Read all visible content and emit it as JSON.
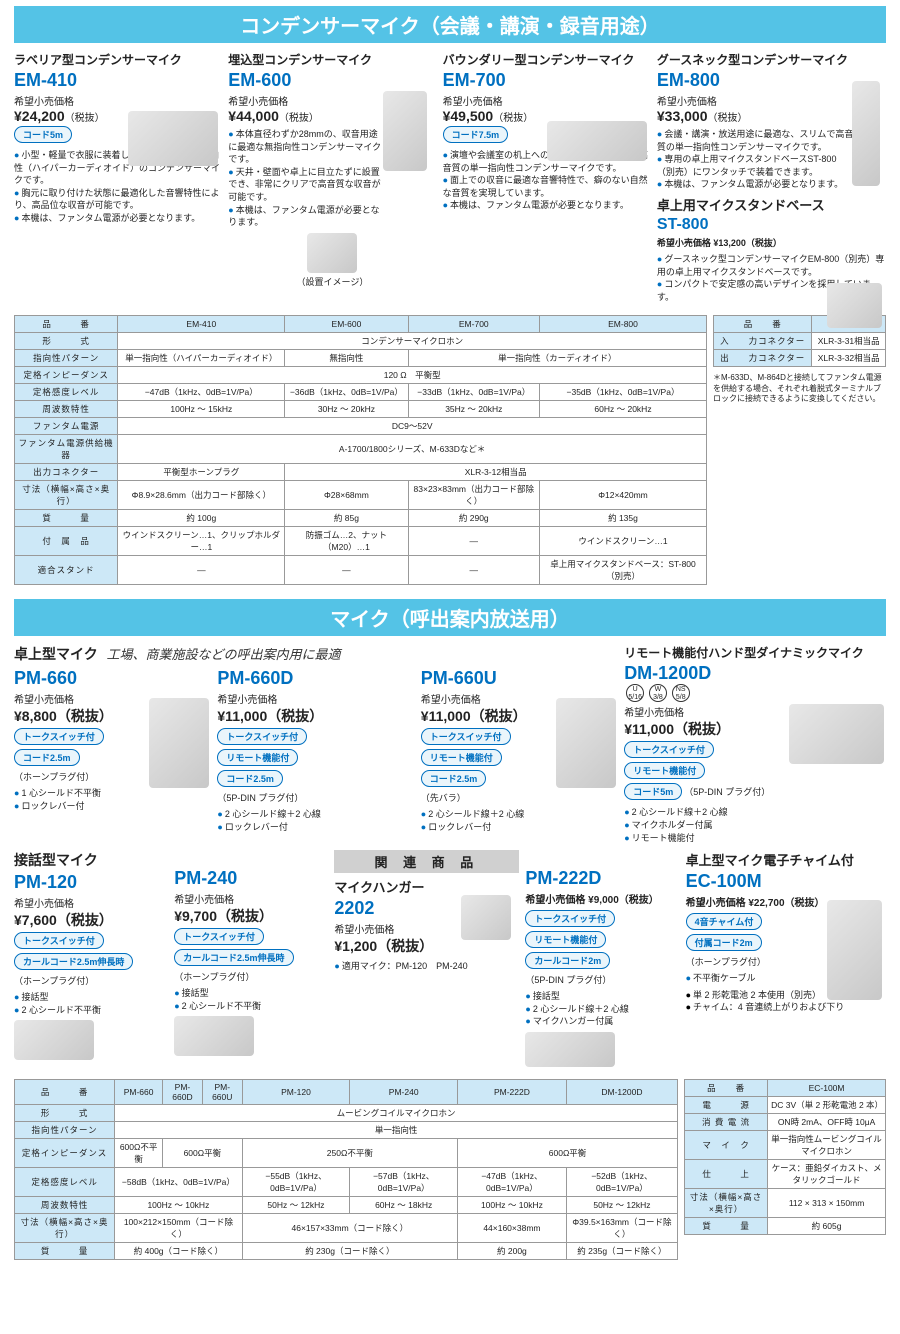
{
  "colors": {
    "accent": "#0070c0",
    "header_bg": "#54c3e6",
    "table_head": "#cde8f7",
    "border": "#999"
  },
  "section1": {
    "title": "コンデンサーマイク（会議・講演・録音用途）",
    "products": [
      {
        "type": "ラベリア型コンデンサーマイク",
        "model": "EM-410",
        "price_label": "希望小売価格",
        "price": "¥24,200",
        "tax": "（税抜）",
        "badges": [
          "コード5m"
        ],
        "bullets": [
          "小型・軽量で衣服に装着して使用できる単一指向性（ハイパーカーディオイド）のコンデンサーマイクです。",
          "胸元に取り付けた状態に最適化した音響特性により、高品位な収音が可能です。",
          "本機は、ファンタム電源が必要となります。"
        ]
      },
      {
        "type": "埋込型コンデンサーマイク",
        "model": "EM-600",
        "price_label": "希望小売価格",
        "price": "¥44,000",
        "tax": "（税抜）",
        "badges": [],
        "bullets": [
          "本体直径わずか28mmの、収音用途に最適な無指向性コンデンサーマイクです。",
          "天井・壁面や卓上に目立たずに設置でき、非常にクリアで高音質な収音が可能です。",
          "本機は、ファンタム電源が必要となります。"
        ],
        "caption": "（設置イメージ）"
      },
      {
        "type": "バウンダリー型コンデンサーマイク",
        "model": "EM-700",
        "price_label": "希望小売価格",
        "price": "¥49,500",
        "tax": "（税抜）",
        "badges": [
          "コード7.5m"
        ],
        "bullets": [
          "演壇や会議室の机上への設置に最適な、薄型で高音質の単一指向性コンデンサーマイクです。",
          "面上での収音に最適な音響特性で、癖のない自然な音質を実現しています。",
          "本機は、ファンタム電源が必要となります。"
        ]
      },
      {
        "type": "グースネック型コンデンサーマイク",
        "model": "EM-800",
        "price_label": "希望小売価格",
        "price": "¥33,000",
        "tax": "（税抜）",
        "badges": [],
        "bullets": [
          "会議・講演・放送用途に最適な、スリムで高音質の単一指向性コンデンサーマイクです。",
          "専用の卓上用マイクスタンドベースST-800（別売）にワンタッチで装着できます。",
          "本機は、ファンタム電源が必要となります。"
        ]
      }
    ],
    "stand": {
      "title": "卓上用マイクスタンドベース",
      "model": "ST-800",
      "price_label": "希望小売価格 ¥13,200（税抜）",
      "bullets": [
        "グースネック型コンデンサーマイクEM-800（別売）専用の卓上用マイクスタンドベースです。",
        "コンパクトで安定感の高いデザインを採用しています。"
      ]
    },
    "spec": {
      "headers": [
        "品　　　番",
        "EM-410",
        "EM-600",
        "EM-700",
        "EM-800"
      ],
      "rows": [
        {
          "h": "形　　　式",
          "cells": [
            "コンデンサーマイクロホン"
          ],
          "span": 4
        },
        {
          "h": "指向性パターン",
          "cells": [
            "単一指向性（ハイパーカーディオイド）",
            "無指向性",
            "単一指向性（カーディオイド）"
          ],
          "spans": [
            1,
            1,
            2
          ]
        },
        {
          "h": "定格インピーダンス",
          "cells": [
            "120 Ω　平衡型"
          ],
          "span": 4
        },
        {
          "h": "定格感度レベル",
          "cells": [
            "−47dB（1kHz、0dB=1V/Pa）",
            "−36dB（1kHz、0dB=1V/Pa）",
            "−33dB（1kHz、0dB=1V/Pa）",
            "−35dB（1kHz、0dB=1V/Pa）"
          ]
        },
        {
          "h": "周波数特性",
          "cells": [
            "100Hz ～ 15kHz",
            "30Hz ～ 20kHz",
            "35Hz ～ 20kHz",
            "60Hz ～ 20kHz"
          ]
        },
        {
          "h": "ファンタム電源",
          "cells": [
            "DC9～52V"
          ],
          "span": 4
        },
        {
          "h": "ファンタム電源供給機器",
          "cells": [
            "A-1700/1800シリーズ、M-633Dなど＊"
          ],
          "span": 4
        },
        {
          "h": "出力コネクター",
          "cells": [
            "平衡型ホーンプラグ",
            "XLR-3-12相当品"
          ],
          "spans": [
            1,
            3
          ]
        },
        {
          "h": "寸法（横幅×高さ×奥行）",
          "cells": [
            "Φ8.9×28.6mm（出力コード部除く）",
            "Φ28×68mm",
            "83×23×83mm（出力コード部除く）",
            "Φ12×420mm"
          ]
        },
        {
          "h": "質　　　量",
          "cells": [
            "約 100g",
            "約 85g",
            "約 290g",
            "約 135g"
          ]
        },
        {
          "h": "付　属　品",
          "cells": [
            "ウインドスクリーン…1、クリップホルダー…1",
            "防振ゴム…2、ナット（M20）…1",
            "―",
            "ウインドスクリーン…1"
          ]
        },
        {
          "h": "適合スタンド",
          "cells": [
            "―",
            "―",
            "―",
            "卓上用マイクスタンドベース：ST-800（別売）"
          ]
        }
      ]
    },
    "spec2": {
      "headers": [
        "品　　番",
        "ST-800"
      ],
      "rows": [
        {
          "h": "入　　力コネクター",
          "c": "XLR-3-31相当品"
        },
        {
          "h": "出　　力コネクター",
          "c": "XLR-3-32相当品"
        }
      ]
    },
    "footnote": "＊M-633D、M-864Dと接続してファンタム電源を供給する場合、それぞれ着脱式ターミナルブロックに接続できるように変換してください。"
  },
  "section2": {
    "title": "マイク（呼出案内放送用）",
    "group1": {
      "type": "卓上型マイク",
      "sub": "工場、商業施設などの呼出案内用に最適",
      "items": [
        {
          "model": "PM-660",
          "price": "¥8,800（税抜）",
          "badges": [
            "トークスイッチ付",
            "コード2.5m"
          ],
          "note": "（ホーンプラグ付）",
          "bullets": [
            "1 心シールド不平衡",
            "ロックレバー付"
          ]
        },
        {
          "model": "PM-660D",
          "price": "¥11,000（税抜）",
          "badges": [
            "トークスイッチ付",
            "リモート機能付",
            "コード2.5m"
          ],
          "note": "（5P-DIN プラグ付）",
          "bullets": [
            "2 心シールド線＋2 心線",
            "ロックレバー付"
          ]
        },
        {
          "model": "PM-660U",
          "price": "¥11,000（税抜）",
          "badges": [
            "トークスイッチ付",
            "リモート機能付",
            "コード2.5m"
          ],
          "note": "（先バラ）",
          "bullets": [
            "2 心シールド線＋2 心線",
            "ロックレバー付"
          ]
        }
      ]
    },
    "group2": {
      "type": "リモート機能付ハンド型ダイナミックマイク",
      "items": [
        {
          "model": "DM-1200D",
          "price": "¥11,000（税抜）",
          "badges": [
            "トークスイッチ付",
            "リモート機能付",
            "コード5m"
          ],
          "note": "（5P-DIN プラグ付）",
          "bullets": [
            "2 心シールド線＋2 心線",
            "マイクホルダー付属",
            "リモート機能付"
          ],
          "circles": [
            "U 5/16",
            "W 3/8",
            "NS 5/8"
          ]
        }
      ]
    },
    "group3": {
      "type": "接話型マイク",
      "items": [
        {
          "model": "PM-120",
          "price": "¥7,600（税抜）",
          "badges": [
            "トークスイッチ付",
            "カールコード2.5m伸長時"
          ],
          "note": "（ホーンプラグ付）",
          "bullets": [
            "接話型",
            "2 心シールド不平衡"
          ]
        },
        {
          "model": "PM-240",
          "price": "¥9,700（税抜）",
          "badges": [
            "トークスイッチ付",
            "カールコード2.5m伸長時"
          ],
          "note": "（ホーンプラグ付）",
          "bullets": [
            "接話型",
            "2 心シールド不平衡"
          ]
        }
      ]
    },
    "related": {
      "header": "関 連 商 品",
      "title": "マイクハンガー",
      "model": "2202",
      "price": "¥1,200（税抜）",
      "bullets": [
        "適用マイク：PM-120　PM-240"
      ]
    },
    "group4": {
      "items": [
        {
          "model": "PM-222D",
          "price": "希望小売価格 ¥9,000（税抜）",
          "badges": [
            "トークスイッチ付",
            "リモート機能付",
            "カールコード2m"
          ],
          "note": "（5P-DIN プラグ付）",
          "bullets": [
            "接話型",
            "2 心シールド線＋2 心線",
            "マイクハンガー付属"
          ]
        }
      ]
    },
    "group5": {
      "type": "卓上型マイク電子チャイム付",
      "items": [
        {
          "model": "EC-100M",
          "price": "希望小売価格 ¥22,700（税抜）",
          "badges": [
            "4音チャイム付",
            "付属コード2m"
          ],
          "note": "（ホーンプラグ付）",
          "bullets": [
            "不平衡ケーブル"
          ],
          "kbullets": [
            "単 2 形乾電池 2 本使用（別売）",
            "チャイム：4 音連続上がりおよび下り"
          ]
        }
      ]
    },
    "spec": {
      "headers": [
        "品　　　番",
        "PM-660",
        "PM-660D",
        "PM-660U",
        "PM-120",
        "PM-240",
        "PM-222D",
        "DM-1200D"
      ],
      "rows": [
        {
          "h": "形　　　式",
          "cells": [
            "ムービングコイルマイクロホン"
          ],
          "span": 7
        },
        {
          "h": "指向性パターン",
          "cells": [
            "単一指向性"
          ],
          "span": 7
        },
        {
          "h": "定格インピーダンス",
          "cells": [
            "600Ω不平衡",
            "600Ω平衡",
            "250Ω不平衡",
            "600Ω平衡"
          ],
          "spans": [
            1,
            2,
            2,
            2
          ]
        },
        {
          "h": "定格感度レベル",
          "cells": [
            "−58dB（1kHz、0dB=1V/Pa）",
            "−55dB（1kHz、0dB=1V/Pa）",
            "−57dB（1kHz、0dB=1V/Pa）",
            "−47dB（1kHz、0dB=1V/Pa）",
            "−52dB（1kHz、0dB=1V/Pa）"
          ],
          "spans": [
            3,
            1,
            1,
            1,
            1
          ]
        },
        {
          "h": "周波数特性",
          "cells": [
            "100Hz ～ 10kHz",
            "50Hz ～ 12kHz",
            "60Hz ～ 18kHz",
            "100Hz ～ 10kHz",
            "50Hz ～ 12kHz"
          ],
          "spans": [
            3,
            1,
            1,
            1,
            1
          ]
        },
        {
          "h": "寸法（横幅×高さ×奥行）",
          "cells": [
            "100×212×150mm（コード除く）",
            "46×157×33mm（コード除く）",
            "44×160×38mm",
            "Φ39.5×163mm（コード除く）"
          ],
          "spans": [
            3,
            2,
            1,
            1
          ]
        },
        {
          "h": "質　　　量",
          "cells": [
            "約 400g（コード除く）",
            "約 230g（コード除く）",
            "約 200g",
            "約 235g（コード除く）"
          ],
          "spans": [
            3,
            2,
            1,
            1
          ]
        }
      ]
    },
    "spec2": {
      "headers": [
        "品　　番",
        "EC-100M"
      ],
      "rows": [
        {
          "h": "電　　　源",
          "c": "DC 3V（単 2 形乾電池 2 本）"
        },
        {
          "h": "消 費 電 流",
          "c": "ON時 2mA、OFF時 10μA"
        },
        {
          "h": "マ　イ　ク",
          "c": "単一指向性ムービングコイルマイクロホン"
        },
        {
          "h": "仕　　　上",
          "c": "ケース：亜鉛ダイカスト、メタリックゴールド"
        },
        {
          "h": "寸法（横幅×高さ×奥行）",
          "c": "112 × 313 × 150mm"
        },
        {
          "h": "質　　　量",
          "c": "約 605g"
        }
      ]
    }
  }
}
